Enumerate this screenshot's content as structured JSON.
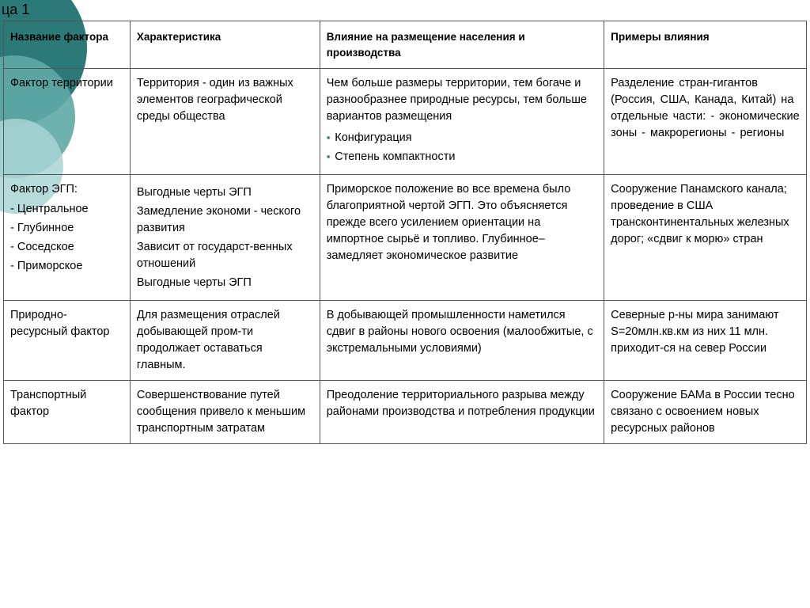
{
  "title_fragment": "ца 1",
  "headers": {
    "c1": "Название фактора",
    "c2": "Характеристика",
    "c3": "Влияние на размещение населения и производства",
    "c4": "Примеры влияния"
  },
  "rows": [
    {
      "c1": "Фактор территории",
      "c2": "Территория - один из важных элементов географической среды общества",
      "c3_main": "Чем больше размеры территории, тем богаче и разнообразнее природные ресурсы, тем больше вариантов размещения",
      "c3_bullets": [
        "Конфигурация",
        "Степень компактности"
      ],
      "c4": "Разделение стран-гигантов (Россия, США, Канада, Китай) на отдельные части:               - экономические зоны       - макрорегионы               - регионы"
    },
    {
      "c1_main": "Фактор ЭГП:",
      "c1_sub": [
        "- Центральное",
        "- Глубинное",
        "- Соседское",
        "- Приморское"
      ],
      "c2_lines": [
        "Выгодные черты ЭГП",
        "Замедление экономи - ческого развития",
        "Зависит от государст-венных отношений",
        "Выгодные черты ЭГП"
      ],
      "c3": "Приморское положение во все времена было благоприятной чертой ЭГП. Это объясняется прежде всего усилением ориентации на импортное сырьё и топливо. Глубинное–замедляет экономическое развитие",
      "c4": "Сооружение Панамского канала; проведение в США трансконтинентальных железных дорог; «сдвиг к морю» стран"
    },
    {
      "c1": "Природно-ресурсный фактор",
      "c2": "Для размещения отраслей добывающей пром-ти продолжает оставаться главным.",
      "c3": "В добывающей промышленности наметился сдвиг в районы нового освоения (малообжитые, с экстремальными условиями)",
      "c4": "Северные р-ны мира занимают S=20млн.кв.км из них 11 млн. приходит-ся на север России"
    },
    {
      "c1": "Транспортный фактор",
      "c2": "Совершенствование путей сообщения привело к меньшим транспортным затратам",
      "c3": "Преодоление территориального разрыва между районами производства и потребления продукции",
      "c4": "Сооружение БАМа в России тесно связано с освоением новых ресурсных районов"
    }
  ],
  "colors": {
    "circle_outer": "#2b7a78",
    "circle_mid": "#5fa8a6",
    "circle_inner": "#a8d5d3",
    "bg": "#ffffff",
    "text": "#000000",
    "border": "#555555"
  }
}
